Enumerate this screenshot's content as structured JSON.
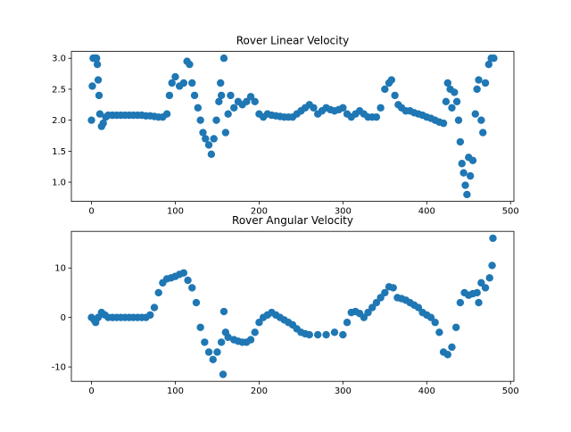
{
  "chart_data": [
    {
      "type": "scatter",
      "title": "Rover Linear Velocity",
      "color": "#1f77b4",
      "xlim": [
        -24,
        504
      ],
      "ylim": [
        0.69,
        3.11
      ],
      "xticks": [
        0,
        100,
        200,
        300,
        400,
        500
      ],
      "yticks": [
        {
          "value": 1,
          "label": "1.0"
        },
        1.5,
        {
          "value": 2,
          "label": "2.0"
        },
        2.5,
        {
          "value": 3,
          "label": "3.0"
        }
      ],
      "x": [
        0,
        1,
        2,
        4,
        6,
        7,
        8,
        9,
        10,
        12,
        14,
        17,
        20,
        25,
        30,
        35,
        40,
        45,
        50,
        55,
        60,
        65,
        70,
        75,
        80,
        85,
        90,
        93,
        96,
        100,
        105,
        110,
        114,
        117,
        120,
        123,
        127,
        130,
        133,
        136,
        140,
        143,
        146,
        149,
        152,
        154,
        155,
        158,
        160,
        163,
        166,
        170,
        175,
        180,
        185,
        190,
        195,
        200,
        205,
        210,
        215,
        220,
        225,
        230,
        235,
        240,
        245,
        250,
        255,
        260,
        265,
        270,
        275,
        280,
        285,
        290,
        295,
        300,
        305,
        310,
        315,
        320,
        325,
        330,
        335,
        340,
        345,
        350,
        355,
        358,
        362,
        366,
        370,
        375,
        380,
        385,
        390,
        395,
        400,
        405,
        410,
        415,
        420,
        423,
        425,
        428,
        430,
        433,
        436,
        438,
        440,
        442,
        444,
        446,
        448,
        450,
        452,
        455,
        458,
        460,
        462,
        465,
        467,
        470,
        474,
        477,
        480
      ],
      "values": [
        2.0,
        2.55,
        3.0,
        3.0,
        3.0,
        2.9,
        2.65,
        2.4,
        2.1,
        1.9,
        1.95,
        2.05,
        2.08,
        2.08,
        2.08,
        2.08,
        2.08,
        2.08,
        2.08,
        2.08,
        2.08,
        2.07,
        2.07,
        2.06,
        2.05,
        2.05,
        2.1,
        2.4,
        2.6,
        2.7,
        2.55,
        2.6,
        2.95,
        2.9,
        2.6,
        2.4,
        2.2,
        2.0,
        1.8,
        1.7,
        1.6,
        1.45,
        1.7,
        2.0,
        2.3,
        2.6,
        2.4,
        3.0,
        1.8,
        2.1,
        2.4,
        2.2,
        2.3,
        2.25,
        2.3,
        2.38,
        2.3,
        2.1,
        2.05,
        2.1,
        2.08,
        2.07,
        2.06,
        2.05,
        2.05,
        2.05,
        2.1,
        2.15,
        2.2,
        2.25,
        2.2,
        2.1,
        2.15,
        2.2,
        2.17,
        2.15,
        2.17,
        2.2,
        2.1,
        2.05,
        2.1,
        2.15,
        2.1,
        2.05,
        2.05,
        2.05,
        2.2,
        2.5,
        2.6,
        2.65,
        2.4,
        2.25,
        2.2,
        2.15,
        2.15,
        2.12,
        2.1,
        2.08,
        2.05,
        2.03,
        2.0,
        1.97,
        1.95,
        2.3,
        2.6,
        2.5,
        2.2,
        2.45,
        2.3,
        2.0,
        1.65,
        1.3,
        1.15,
        0.95,
        0.8,
        1.4,
        1.1,
        1.35,
        2.1,
        2.5,
        2.65,
        2.0,
        1.8,
        2.6,
        2.9,
        3.0,
        3.0
      ]
    },
    {
      "type": "scatter",
      "title": "Rover Angular Velocity",
      "color": "#1f77b4",
      "xlim": [
        -24,
        504
      ],
      "ylim": [
        -12.9,
        17.4
      ],
      "xticks": [
        0,
        100,
        200,
        300,
        400,
        500
      ],
      "yticks": [
        -10,
        0,
        10
      ],
      "x": [
        0,
        3,
        5,
        8,
        12,
        16,
        20,
        25,
        30,
        35,
        40,
        45,
        50,
        55,
        60,
        65,
        70,
        75,
        80,
        85,
        90,
        95,
        100,
        105,
        110,
        115,
        120,
        125,
        130,
        135,
        140,
        145,
        150,
        155,
        157,
        158,
        160,
        163,
        170,
        175,
        180,
        185,
        190,
        195,
        200,
        205,
        210,
        215,
        220,
        225,
        230,
        235,
        240,
        245,
        250,
        255,
        260,
        270,
        280,
        290,
        300,
        305,
        310,
        315,
        320,
        325,
        330,
        335,
        340,
        345,
        350,
        355,
        360,
        365,
        370,
        375,
        380,
        385,
        390,
        395,
        400,
        405,
        410,
        415,
        420,
        425,
        430,
        435,
        440,
        445,
        450,
        455,
        460,
        462,
        465,
        470,
        475,
        478,
        479
      ],
      "values": [
        0,
        -0.5,
        -1,
        0,
        1,
        0.5,
        0,
        0,
        0,
        0,
        0,
        0,
        0,
        0,
        0,
        0,
        0.5,
        2,
        5,
        7,
        7.8,
        8,
        8.3,
        8.7,
        9,
        7.5,
        6,
        3,
        -2,
        -5,
        -7,
        -8.5,
        -7,
        -5,
        -11.5,
        1.2,
        -3,
        -4,
        -4.5,
        -4.8,
        -5,
        -5,
        -4.5,
        -3,
        -1,
        0,
        0.5,
        1,
        0.5,
        0,
        -0.5,
        -1,
        -1.5,
        -2.3,
        -3,
        -3.3,
        -3.5,
        -3.5,
        -3.5,
        -3,
        -3.5,
        -1,
        1,
        1.2,
        0.8,
        0,
        1,
        2,
        3,
        4,
        5,
        6.2,
        6,
        4,
        3.8,
        3.5,
        3,
        2.5,
        2,
        1,
        0.5,
        0,
        -1,
        -3,
        -7,
        -7.5,
        -6,
        -2,
        3,
        5,
        4.5,
        4.8,
        5,
        3,
        7,
        6,
        8,
        10.5,
        16
      ]
    }
  ]
}
